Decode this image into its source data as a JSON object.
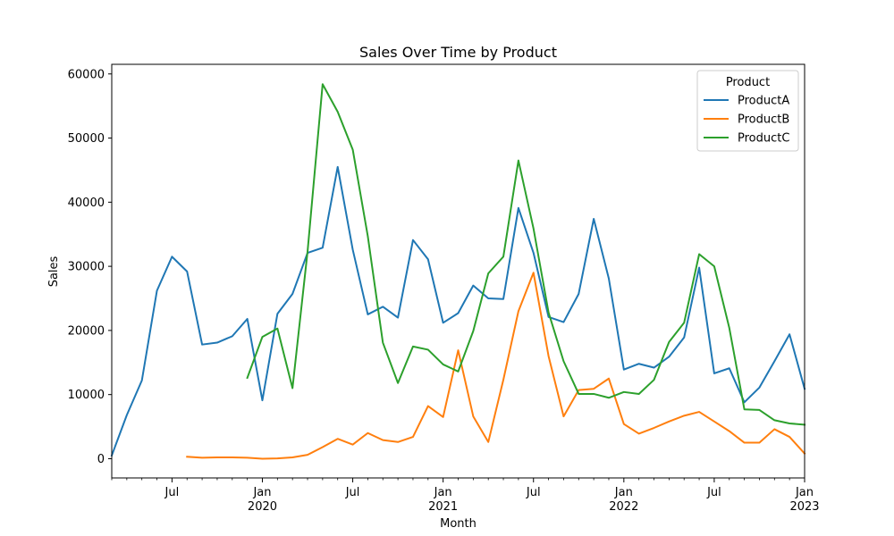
{
  "chart_data": {
    "type": "line",
    "title": "Sales Over Time by Product",
    "xlabel": "Month",
    "ylabel": "Sales",
    "ylim": [
      -3000,
      61500
    ],
    "xlim": [
      "2019-03",
      "2023-01"
    ],
    "grid": false,
    "legend": {
      "title": "Product",
      "placement": "top-right"
    },
    "x_ticks": [
      {
        "month": "2019-07",
        "label": "Jul",
        "year": ""
      },
      {
        "month": "2020-01",
        "label": "Jan",
        "year": "2020"
      },
      {
        "month": "2020-07",
        "label": "Jul",
        "year": ""
      },
      {
        "month": "2021-01",
        "label": "Jan",
        "year": "2021"
      },
      {
        "month": "2021-07",
        "label": "Jul",
        "year": ""
      },
      {
        "month": "2022-01",
        "label": "Jan",
        "year": "2022"
      },
      {
        "month": "2022-07",
        "label": "Jul",
        "year": ""
      },
      {
        "month": "2023-01",
        "label": "Jan",
        "year": "2023"
      }
    ],
    "y_ticks": [
      0,
      10000,
      20000,
      30000,
      40000,
      50000,
      60000
    ],
    "series": [
      {
        "name": "ProductA",
        "color": "#1f77b4",
        "points": [
          [
            "2019-03",
            500
          ],
          [
            "2019-04",
            6800
          ],
          [
            "2019-05",
            12200
          ],
          [
            "2019-06",
            26200
          ],
          [
            "2019-07",
            31500
          ],
          [
            "2019-08",
            29200
          ],
          [
            "2019-09",
            17800
          ],
          [
            "2019-10",
            18100
          ],
          [
            "2019-11",
            19100
          ],
          [
            "2019-12",
            21800
          ],
          [
            "2020-01",
            9100
          ],
          [
            "2020-02",
            22600
          ],
          [
            "2020-03",
            25700
          ],
          [
            "2020-04",
            32100
          ],
          [
            "2020-05",
            32900
          ],
          [
            "2020-06",
            45500
          ],
          [
            "2020-07",
            32600
          ],
          [
            "2020-08",
            22500
          ],
          [
            "2020-09",
            23700
          ],
          [
            "2020-10",
            22000
          ],
          [
            "2020-11",
            34100
          ],
          [
            "2020-12",
            31100
          ],
          [
            "2021-01",
            21200
          ],
          [
            "2021-02",
            22700
          ],
          [
            "2021-03",
            27000
          ],
          [
            "2021-04",
            25000
          ],
          [
            "2021-05",
            24900
          ],
          [
            "2021-06",
            39100
          ],
          [
            "2021-07",
            32100
          ],
          [
            "2021-08",
            22100
          ],
          [
            "2021-09",
            21300
          ],
          [
            "2021-10",
            25700
          ],
          [
            "2021-11",
            37400
          ],
          [
            "2021-12",
            28100
          ],
          [
            "2022-01",
            13900
          ],
          [
            "2022-02",
            14800
          ],
          [
            "2022-03",
            14200
          ],
          [
            "2022-04",
            15900
          ],
          [
            "2022-05",
            18900
          ],
          [
            "2022-06",
            29800
          ],
          [
            "2022-07",
            13300
          ],
          [
            "2022-08",
            14100
          ],
          [
            "2022-09",
            8800
          ],
          [
            "2022-10",
            11100
          ],
          [
            "2022-11",
            15200
          ],
          [
            "2022-12",
            19400
          ],
          [
            "2023-01",
            10900
          ]
        ]
      },
      {
        "name": "ProductB",
        "color": "#ff7f0e",
        "points": [
          [
            "2019-08",
            300
          ],
          [
            "2019-09",
            150
          ],
          [
            "2019-10",
            200
          ],
          [
            "2019-11",
            200
          ],
          [
            "2019-12",
            150
          ],
          [
            "2020-01",
            0
          ],
          [
            "2020-02",
            50
          ],
          [
            "2020-03",
            200
          ],
          [
            "2020-04",
            600
          ],
          [
            "2020-05",
            1800
          ],
          [
            "2020-06",
            3100
          ],
          [
            "2020-07",
            2200
          ],
          [
            "2020-08",
            4000
          ],
          [
            "2020-09",
            2900
          ],
          [
            "2020-10",
            2600
          ],
          [
            "2020-11",
            3400
          ],
          [
            "2020-12",
            8200
          ],
          [
            "2021-01",
            6500
          ],
          [
            "2021-02",
            16900
          ],
          [
            "2021-03",
            6600
          ],
          [
            "2021-04",
            2600
          ],
          [
            "2021-05",
            12300
          ],
          [
            "2021-06",
            23000
          ],
          [
            "2021-07",
            29000
          ],
          [
            "2021-08",
            16000
          ],
          [
            "2021-09",
            6600
          ],
          [
            "2021-10",
            10700
          ],
          [
            "2021-11",
            10900
          ],
          [
            "2021-12",
            12500
          ],
          [
            "2022-01",
            5400
          ],
          [
            "2022-02",
            3900
          ],
          [
            "2022-03",
            4800
          ],
          [
            "2022-04",
            5800
          ],
          [
            "2022-05",
            6700
          ],
          [
            "2022-06",
            7300
          ],
          [
            "2022-07",
            5800
          ],
          [
            "2022-08",
            4300
          ],
          [
            "2022-09",
            2500
          ],
          [
            "2022-10",
            2500
          ],
          [
            "2022-11",
            4600
          ],
          [
            "2022-12",
            3400
          ],
          [
            "2023-01",
            800
          ]
        ]
      },
      {
        "name": "ProductC",
        "color": "#2ca02c",
        "points": [
          [
            "2019-12",
            12600
          ],
          [
            "2020-01",
            19000
          ],
          [
            "2020-02",
            20300
          ],
          [
            "2020-03",
            11000
          ],
          [
            "2020-04",
            32300
          ],
          [
            "2020-05",
            58400
          ],
          [
            "2020-06",
            54100
          ],
          [
            "2020-07",
            48200
          ],
          [
            "2020-08",
            34700
          ],
          [
            "2020-09",
            18100
          ],
          [
            "2020-10",
            11800
          ],
          [
            "2020-11",
            17500
          ],
          [
            "2020-12",
            17000
          ],
          [
            "2021-01",
            14700
          ],
          [
            "2021-02",
            13600
          ],
          [
            "2021-03",
            19900
          ],
          [
            "2021-04",
            28900
          ],
          [
            "2021-05",
            31500
          ],
          [
            "2021-06",
            46500
          ],
          [
            "2021-07",
            35900
          ],
          [
            "2021-08",
            22800
          ],
          [
            "2021-09",
            15200
          ],
          [
            "2021-10",
            10100
          ],
          [
            "2021-11",
            10100
          ],
          [
            "2021-12",
            9500
          ],
          [
            "2022-01",
            10400
          ],
          [
            "2022-02",
            10100
          ],
          [
            "2022-03",
            12300
          ],
          [
            "2022-04",
            18200
          ],
          [
            "2022-05",
            21200
          ],
          [
            "2022-06",
            31900
          ],
          [
            "2022-07",
            30000
          ],
          [
            "2022-08",
            20400
          ],
          [
            "2022-09",
            7700
          ],
          [
            "2022-10",
            7600
          ],
          [
            "2022-11",
            6000
          ],
          [
            "2022-12",
            5500
          ],
          [
            "2023-01",
            5300
          ]
        ]
      }
    ]
  }
}
